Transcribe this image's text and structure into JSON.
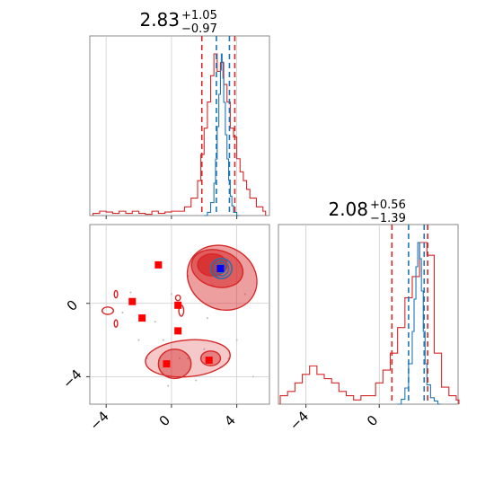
{
  "chart_data": {
    "type": "corner",
    "parameters": [
      {
        "title_value": "2.83",
        "title_plus": "+1.05",
        "title_minus": "−0.97",
        "range": [
          -5.0,
          6.0
        ],
        "ticks": [
          -4,
          0,
          4
        ],
        "tick_labels": [
          "−4",
          "0",
          "4"
        ]
      },
      {
        "title_value": "2.08",
        "title_plus": "+0.56",
        "title_minus": "−1.39",
        "range": [
          -5.5,
          4.3
        ],
        "ticks": [
          -4,
          0
        ],
        "tick_labels": [
          "−4",
          "0"
        ]
      }
    ],
    "scatter_y_ticks": [
      0,
      -4
    ],
    "scatter_y_tick_labels": [
      "0",
      "−4"
    ],
    "scatter_x_tick_labels": [
      "−4",
      "0",
      "4"
    ],
    "colors": {
      "red": "#d62728",
      "blue": "#1f77b4",
      "marker": "#ff0000",
      "truth": "#0000ff"
    },
    "hist_1d": [
      {
        "red_quantiles": [
          1.86,
          3.88
        ],
        "blue_quantiles": [
          2.75,
          3.55
        ],
        "red_x": [
          -4.8,
          -4.4,
          -4.0,
          -3.6,
          -3.2,
          -2.8,
          -2.4,
          -2.0,
          -1.6,
          -1.2,
          -0.8,
          -0.4,
          0.0,
          0.4,
          0.8,
          1.2,
          1.6,
          1.8,
          2.0,
          2.2,
          2.4,
          2.6,
          2.8,
          3.0,
          3.2,
          3.4,
          3.6,
          3.8,
          4.0,
          4.2,
          4.4,
          4.6,
          4.8,
          5.2,
          5.6
        ],
        "red_y": [
          0.005,
          0.01,
          0.008,
          0.005,
          0.01,
          0.005,
          0.01,
          0.005,
          0.003,
          0.01,
          0.005,
          0.008,
          0.01,
          0.01,
          0.02,
          0.04,
          0.08,
          0.14,
          0.2,
          0.26,
          0.32,
          0.37,
          0.33,
          0.35,
          0.3,
          0.26,
          0.2,
          0.18,
          0.13,
          0.1,
          0.08,
          0.06,
          0.04,
          0.02,
          0.01
        ],
        "blue_x": [
          2.0,
          2.2,
          2.4,
          2.6,
          2.7,
          2.8,
          2.9,
          3.0,
          3.05,
          3.1,
          3.15,
          3.2,
          3.3,
          3.4,
          3.5,
          3.6,
          3.7,
          3.8,
          4.0
        ],
        "blue_y": [
          0.0,
          0.02,
          0.08,
          0.2,
          0.35,
          0.55,
          0.75,
          0.9,
          1.0,
          0.95,
          0.85,
          0.7,
          0.5,
          0.35,
          0.22,
          0.12,
          0.06,
          0.02,
          0.0
        ]
      },
      {
        "red_quantiles": [
          0.69,
          2.64
        ],
        "blue_quantiles": [
          1.6,
          2.45
        ],
        "red_x": [
          -5.4,
          -5.0,
          -4.6,
          -4.2,
          -3.8,
          -3.4,
          -3.0,
          -2.6,
          -2.2,
          -1.8,
          -1.4,
          -1.0,
          -0.6,
          -0.2,
          0.2,
          0.6,
          1.0,
          1.4,
          1.8,
          2.2,
          2.6,
          3.0,
          3.4,
          3.8,
          4.2
        ],
        "red_y": [
          0.02,
          0.03,
          0.05,
          0.07,
          0.09,
          0.07,
          0.06,
          0.05,
          0.03,
          0.02,
          0.01,
          0.02,
          0.02,
          0.05,
          0.08,
          0.12,
          0.18,
          0.25,
          0.3,
          0.38,
          0.35,
          0.12,
          0.04,
          0.02,
          0.01
        ],
        "blue_x": [
          1.0,
          1.2,
          1.4,
          1.6,
          1.8,
          1.9,
          2.0,
          2.1,
          2.2,
          2.3,
          2.4,
          2.5,
          2.6,
          2.8,
          3.0,
          3.2
        ],
        "blue_y": [
          0.0,
          0.03,
          0.1,
          0.25,
          0.45,
          0.65,
          0.85,
          1.0,
          0.9,
          0.7,
          0.45,
          0.25,
          0.12,
          0.04,
          0.02,
          0.0
        ]
      }
    ],
    "markers": [
      [
        -0.8,
        2.1
      ],
      [
        -2.4,
        0.1
      ],
      [
        -1.8,
        -0.8
      ],
      [
        0.4,
        -0.1
      ],
      [
        0.4,
        -1.5
      ],
      [
        -0.3,
        -3.3
      ],
      [
        2.3,
        -3.1
      ],
      [
        3.0,
        1.9
      ]
    ],
    "truth": [
      3.0,
      1.9
    ]
  }
}
